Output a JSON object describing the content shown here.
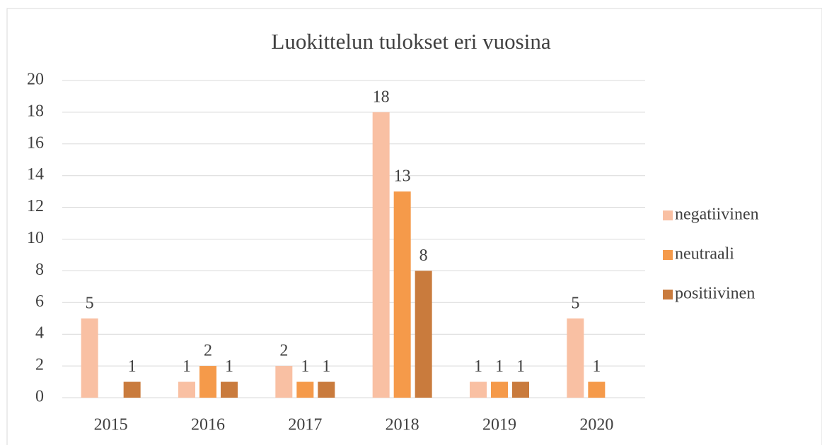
{
  "chart_data": {
    "type": "bar",
    "title": "Luokittelun tulokset eri vuosina",
    "categories": [
      "2015",
      "2016",
      "2017",
      "2018",
      "2019",
      "2020"
    ],
    "series": [
      {
        "name": "negatiivinen",
        "color": "#f9c0a3",
        "values": [
          5,
          1,
          2,
          18,
          1,
          5
        ]
      },
      {
        "name": "neutraali",
        "color": "#f59a4a",
        "values": [
          null,
          2,
          1,
          13,
          1,
          1
        ]
      },
      {
        "name": "positiivinen",
        "color": "#c97b3d",
        "values": [
          1,
          1,
          1,
          8,
          1,
          null
        ]
      }
    ],
    "ylim": [
      0,
      20
    ],
    "yticks": [
      0,
      2,
      4,
      6,
      8,
      10,
      12,
      14,
      16,
      18,
      20
    ],
    "grid": true,
    "legend": "right"
  }
}
